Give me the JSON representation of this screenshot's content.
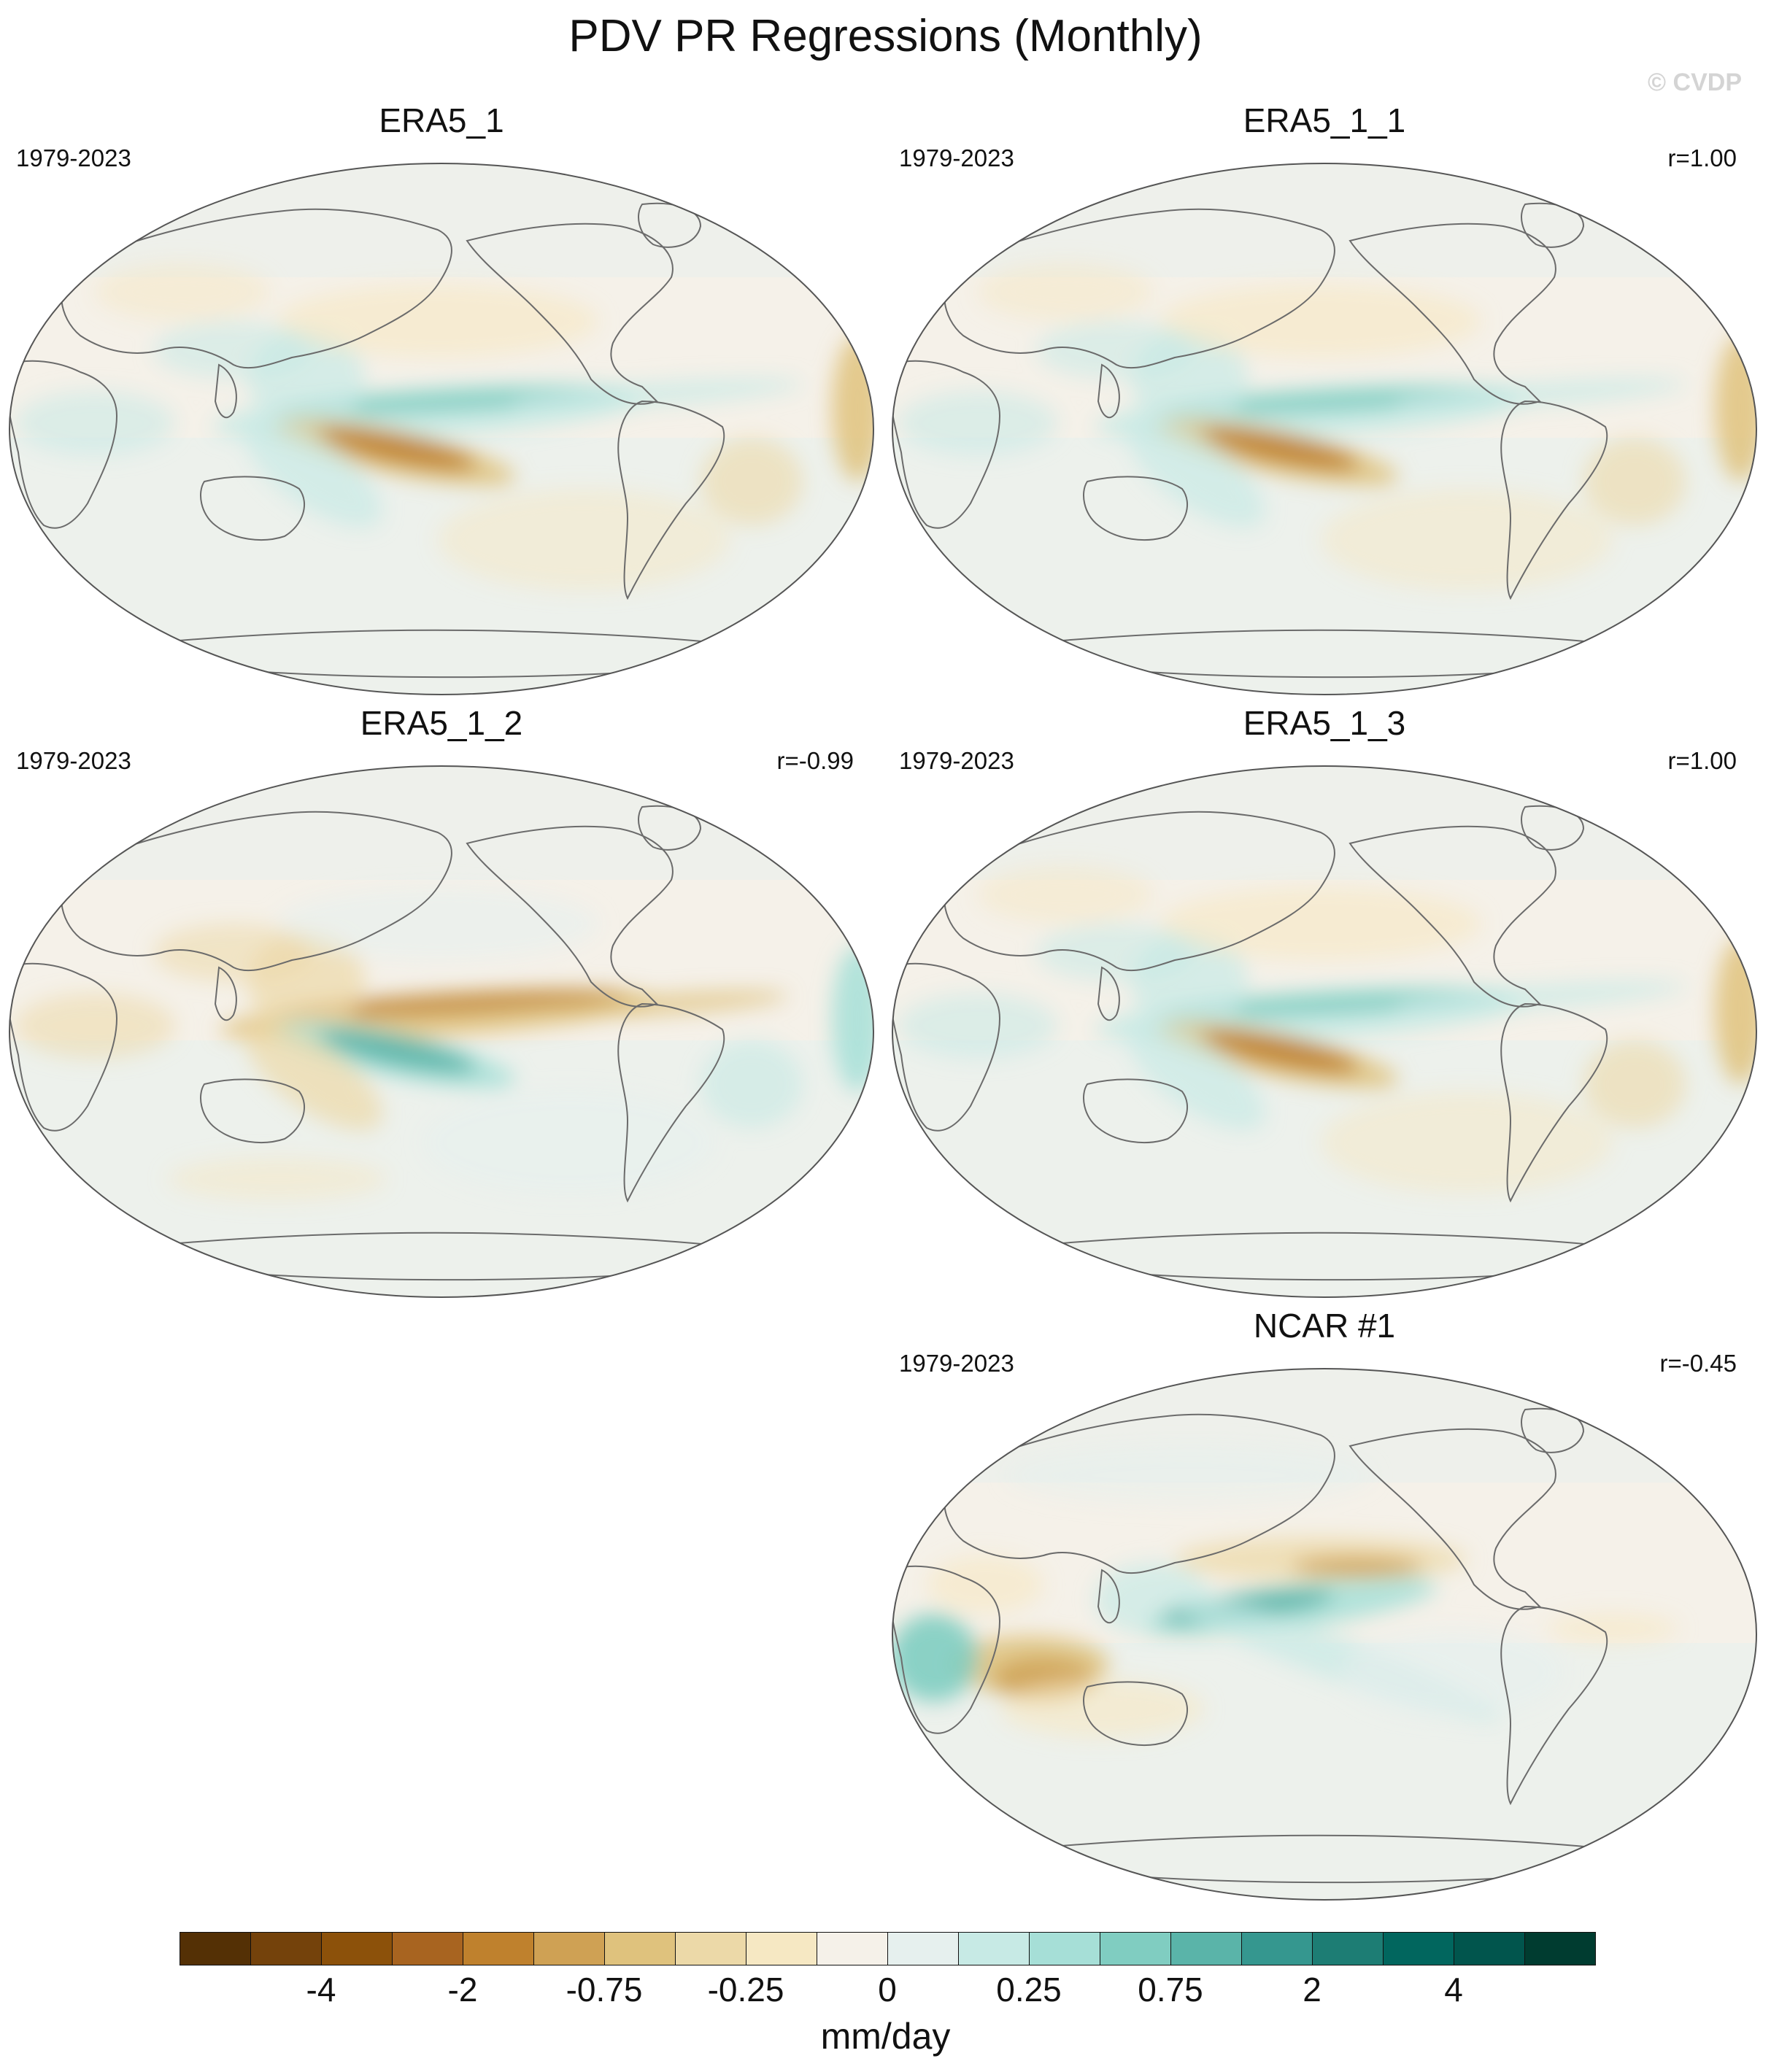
{
  "title": "PDV PR Regressions (Monthly)",
  "watermark": "© CVDP",
  "panels": [
    {
      "title": "ERA5_1",
      "period": "1979-2023",
      "r": "",
      "pattern": "positive"
    },
    {
      "title": "ERA5_1_1",
      "period": "1979-2023",
      "r": "r=1.00",
      "pattern": "positive"
    },
    {
      "title": "ERA5_1_2",
      "period": "1979-2023",
      "r": "r=-0.99",
      "pattern": "negative"
    },
    {
      "title": "ERA5_1_3",
      "period": "1979-2023",
      "r": "r=1.00",
      "pattern": "positive"
    },
    {
      "title": "NCAR #1",
      "period": "1979-2023",
      "r": "r=-0.45",
      "pattern": "model"
    }
  ],
  "colorbar": {
    "colors": [
      "#543005",
      "#74420b",
      "#8c510a",
      "#a86420",
      "#bf812d",
      "#cfa154",
      "#dfc27d",
      "#ecd9a8",
      "#f6e8c3",
      "#f5f1e9",
      "#e6f0ee",
      "#c7eae5",
      "#a6dfd7",
      "#80cdc1",
      "#5ab4a9",
      "#35978f",
      "#1d7d74",
      "#01665e",
      "#01554d",
      "#003c30"
    ],
    "tick_labels": [
      "-4",
      "-2",
      "-0.75",
      "-0.25",
      "0",
      "0.25",
      "0.75",
      "2",
      "4"
    ],
    "units": "mm/day"
  }
}
